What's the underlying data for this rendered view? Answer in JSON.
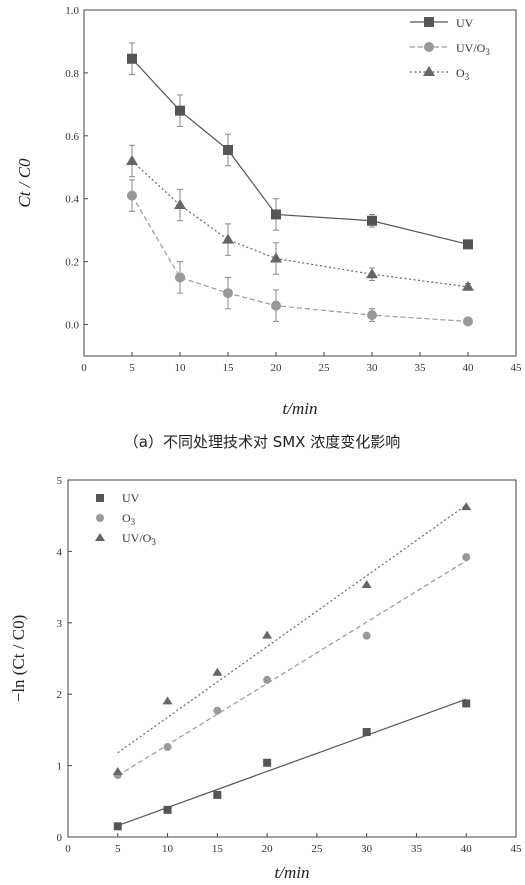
{
  "chart_data": [
    {
      "type": "line",
      "xlabel": "t/min",
      "ylabel": "Ct / C0",
      "xlim": [
        0,
        45
      ],
      "ylim": [
        -0.1,
        1.0
      ],
      "x_ticks": [
        "0",
        "5",
        "10",
        "15",
        "20",
        "25",
        "30",
        "35",
        "40",
        "45"
      ],
      "y_ticks": [
        "0.0",
        "0.2",
        "0.4",
        "0.6",
        "0.8",
        "1.0"
      ],
      "legend_position": "top-right",
      "series": [
        {
          "name": "UV",
          "marker": "square",
          "line": "solid",
          "color": "#555555",
          "x": [
            5,
            10,
            15,
            20,
            30,
            40
          ],
          "y": [
            0.845,
            0.68,
            0.555,
            0.35,
            0.33,
            0.255
          ],
          "err": [
            0.05,
            0.05,
            0.05,
            0.05,
            0.02,
            0.01
          ]
        },
        {
          "name": "UV/O3",
          "marker": "circle",
          "line": "dashed",
          "color": "#999999",
          "x": [
            5,
            10,
            15,
            20,
            30,
            40
          ],
          "y": [
            0.41,
            0.15,
            0.1,
            0.06,
            0.03,
            0.01
          ],
          "err": [
            0.05,
            0.05,
            0.05,
            0.05,
            0.02,
            0.01
          ]
        },
        {
          "name": "O3",
          "marker": "triangle",
          "line": "dotted",
          "color": "#666666",
          "x": [
            5,
            10,
            15,
            20,
            30,
            40
          ],
          "y": [
            0.52,
            0.38,
            0.27,
            0.21,
            0.16,
            0.12
          ],
          "err": [
            0.05,
            0.05,
            0.05,
            0.05,
            0.02,
            0.01
          ]
        }
      ],
      "caption": "（a）不同处理技术对 SMX 浓度变化影响"
    },
    {
      "type": "scatter",
      "xlabel": "t/min",
      "ylabel": "−ln (Ct / C0)",
      "xlim": [
        0,
        45
      ],
      "ylim": [
        0,
        5
      ],
      "x_ticks": [
        "0",
        "5",
        "10",
        "15",
        "20",
        "25",
        "30",
        "35",
        "40",
        "45"
      ],
      "y_ticks": [
        "0",
        "1",
        "2",
        "3",
        "4",
        "5"
      ],
      "legend_position": "top-left",
      "series": [
        {
          "name": "UV",
          "marker": "square",
          "fit": "solid",
          "color": "#555555",
          "x": [
            5,
            10,
            15,
            20,
            30,
            40
          ],
          "y": [
            0.15,
            0.38,
            0.59,
            1.04,
            1.47,
            1.87
          ],
          "fit_y": [
            0.16,
            1.93
          ]
        },
        {
          "name": "O3",
          "marker": "circle",
          "fit": "dashed",
          "color": "#999999",
          "x": [
            5,
            10,
            15,
            20,
            30,
            40
          ],
          "y": [
            0.87,
            1.26,
            1.77,
            2.2,
            2.82,
            3.92
          ],
          "fit_y": [
            0.86,
            3.87
          ]
        },
        {
          "name": "UV/O3",
          "marker": "triangle",
          "fit": "dotted",
          "color": "#666666",
          "x": [
            5,
            10,
            15,
            20,
            30,
            40
          ],
          "y": [
            0.91,
            1.9,
            2.3,
            2.82,
            3.53,
            4.62
          ],
          "fit_y": [
            1.18,
            4.65
          ]
        }
      ]
    }
  ]
}
